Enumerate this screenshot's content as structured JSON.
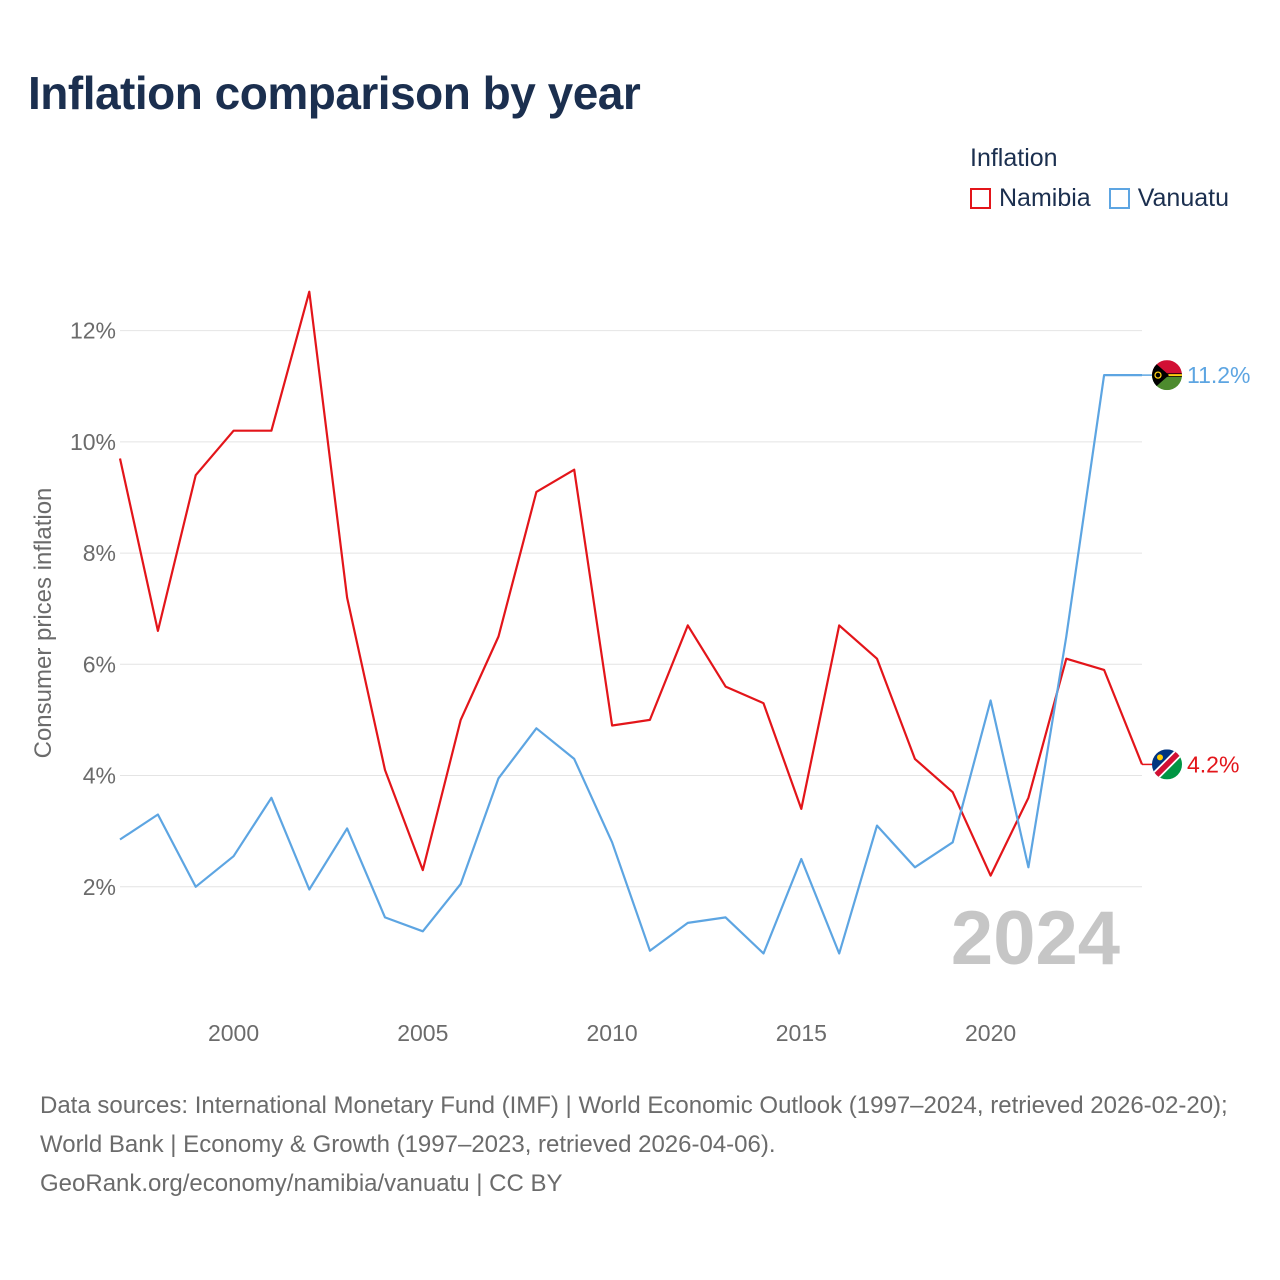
{
  "title": "Inflation comparison by year",
  "legend": {
    "title": "Inflation",
    "items": [
      {
        "label": "Namibia",
        "color": "#e3151a"
      },
      {
        "label": "Vanuatu",
        "color": "#5da5e2"
      }
    ]
  },
  "footer": {
    "line1": "Data sources: International Monetary Fund (IMF) | World Economic Outlook (1997–2024, retrieved 2026-02-20); World Bank | Economy & Growth (1997–2023, retrieved 2026-04-06).",
    "line2": "GeoRank.org/economy/namibia/vanuatu | CC BY"
  },
  "chart_data": {
    "type": "line",
    "title": "Inflation comparison by year",
    "xlabel": "",
    "ylabel": "Consumer prices inflation",
    "x": [
      1997,
      1998,
      1999,
      2000,
      2001,
      2002,
      2003,
      2004,
      2005,
      2006,
      2007,
      2008,
      2009,
      2010,
      2011,
      2012,
      2013,
      2014,
      2015,
      2016,
      2017,
      2018,
      2019,
      2020,
      2021,
      2022,
      2023,
      2024
    ],
    "xlim": [
      1997,
      2024
    ],
    "ylim": [
      0,
      13
    ],
    "x_ticks": [
      2000,
      2005,
      2010,
      2015,
      2020
    ],
    "y_ticks": [
      2,
      4,
      6,
      8,
      10,
      12
    ],
    "y_tick_labels": [
      "2%",
      "4%",
      "6%",
      "8%",
      "10%",
      "12%"
    ],
    "grid": true,
    "watermark_year": "2024",
    "series": [
      {
        "name": "Namibia",
        "color": "#e3151a",
        "values": [
          9.7,
          6.6,
          9.4,
          10.2,
          10.2,
          12.7,
          7.2,
          4.1,
          2.3,
          5.0,
          6.5,
          9.1,
          9.5,
          4.9,
          5.0,
          6.7,
          5.6,
          5.3,
          3.4,
          6.7,
          6.1,
          4.3,
          3.7,
          2.2,
          3.6,
          6.1,
          5.9,
          4.2
        ],
        "end_label": "4.2%",
        "flag": "namibia-flag"
      },
      {
        "name": "Vanuatu",
        "color": "#5da5e2",
        "values": [
          2.85,
          3.3,
          2.0,
          2.55,
          3.6,
          1.95,
          3.05,
          1.45,
          1.2,
          2.05,
          3.95,
          4.85,
          4.3,
          2.8,
          0.85,
          1.35,
          1.45,
          0.8,
          2.5,
          0.8,
          3.1,
          2.35,
          2.8,
          5.35,
          2.35,
          6.5,
          11.2,
          11.2
        ],
        "end_label": "11.2%",
        "flag": "vanuatu-flag"
      }
    ]
  }
}
